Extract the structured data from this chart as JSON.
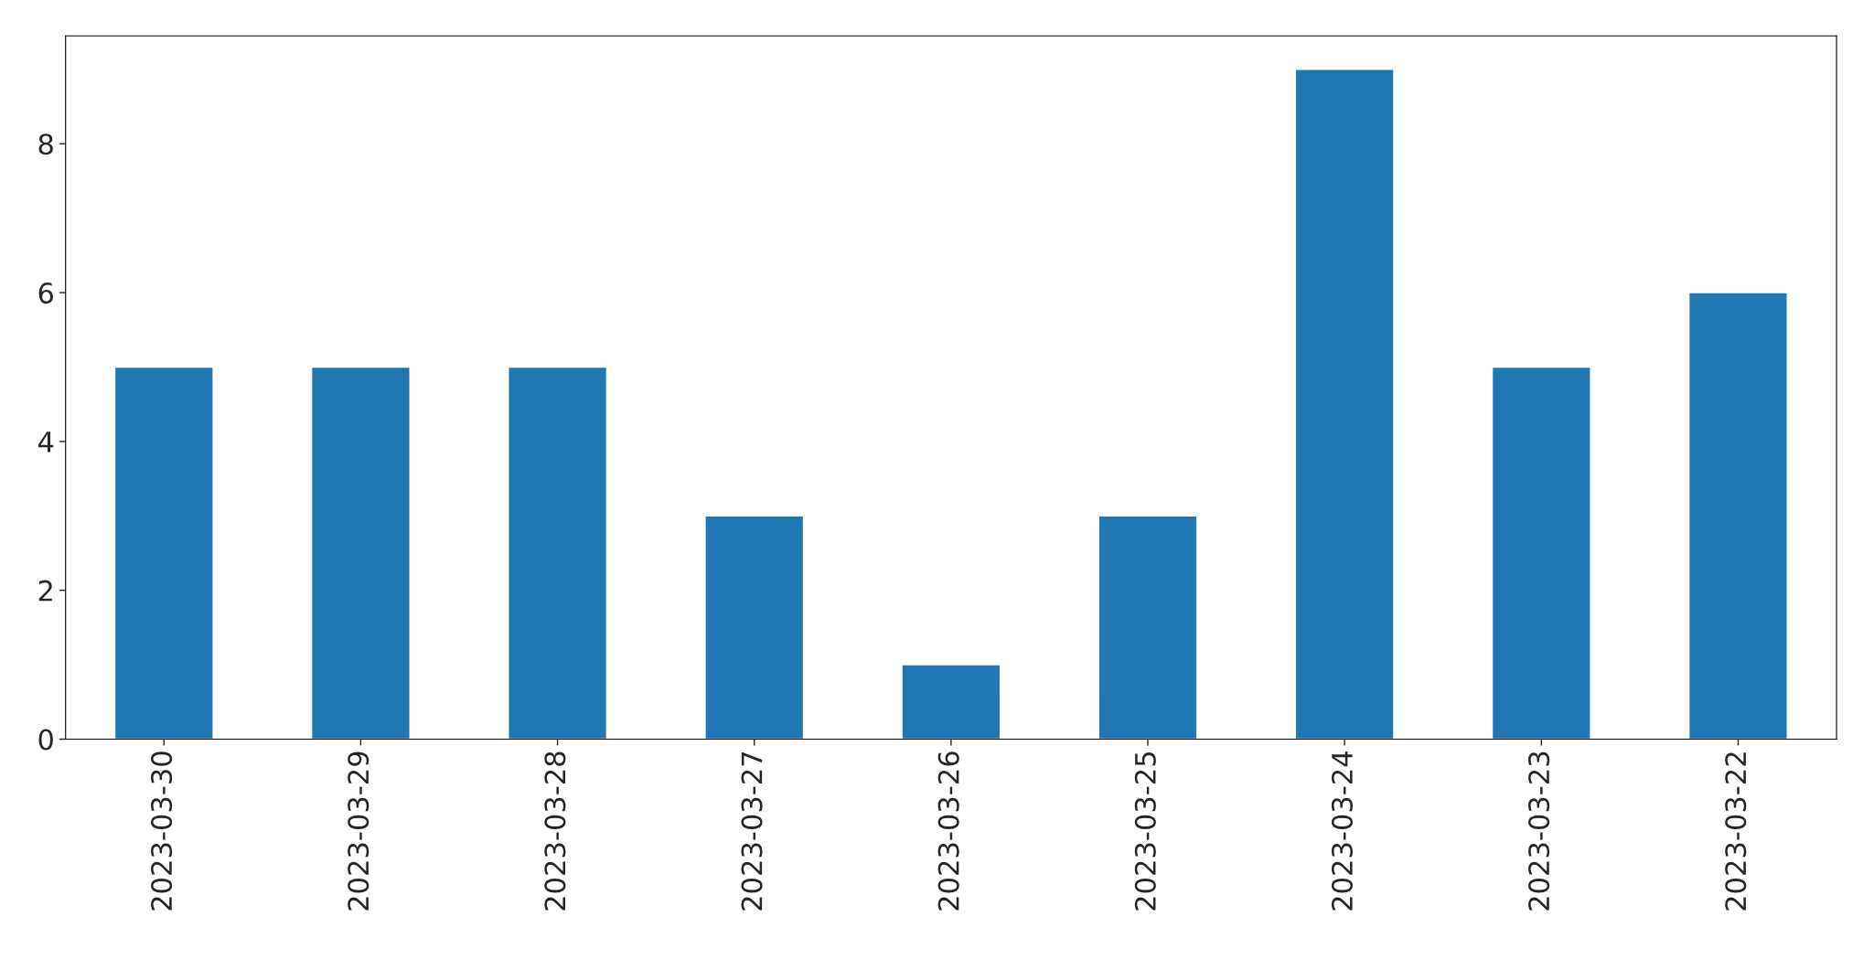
{
  "chart_data": {
    "type": "bar",
    "categories": [
      "2023-03-30",
      "2023-03-29",
      "2023-03-28",
      "2023-03-27",
      "2023-03-26",
      "2023-03-25",
      "2023-03-24",
      "2023-03-23",
      "2023-03-22"
    ],
    "values": [
      5,
      5,
      5,
      3,
      1,
      3,
      9,
      5,
      6
    ],
    "color": "#1f77b4",
    "ylim": [
      0,
      9.45
    ],
    "yticks": [
      0,
      2,
      4,
      6,
      8
    ],
    "grid": false,
    "legend": false
  }
}
